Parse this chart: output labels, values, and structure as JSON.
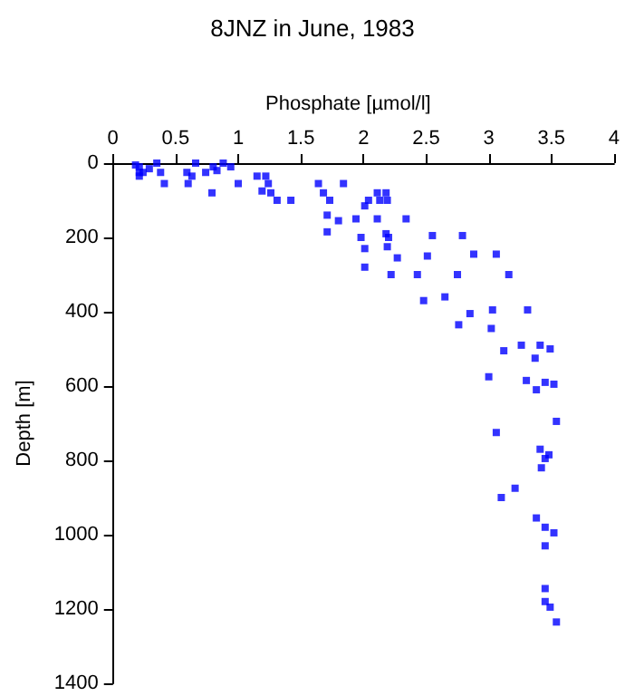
{
  "chart_data": {
    "type": "scatter",
    "title": "8JNZ in June, 1983",
    "xlabel": "Phosphate [µmol/l]",
    "ylabel": "Depth [m]",
    "x": [
      0.18,
      0.21,
      0.21,
      0.21,
      0.24,
      0.29,
      0.35,
      0.38,
      0.41,
      0.59,
      0.6,
      0.63,
      0.66,
      0.74,
      0.8,
      0.83,
      0.88,
      0.94,
      0.79,
      1.0,
      1.15,
      1.22,
      1.24,
      1.19,
      1.26,
      1.31,
      1.42,
      1.64,
      1.84,
      1.68,
      2.11,
      2.18,
      1.73,
      2.04,
      2.13,
      2.19,
      2.01,
      1.71,
      1.8,
      1.94,
      2.11,
      2.34,
      1.71,
      2.18,
      2.2,
      2.55,
      2.79,
      1.98,
      2.01,
      2.19,
      2.27,
      2.51,
      2.88,
      3.06,
      2.01,
      2.22,
      2.43,
      2.75,
      3.16,
      2.48,
      2.65,
      2.85,
      3.03,
      3.31,
      2.76,
      3.02,
      3.12,
      3.26,
      3.41,
      3.49,
      3.37,
      3.0,
      3.3,
      3.45,
      3.52,
      3.38,
      3.54,
      3.06,
      3.41,
      3.48,
      3.45,
      3.42,
      3.21,
      3.1,
      3.38,
      3.45,
      3.52,
      3.45,
      3.45,
      3.45,
      3.49,
      3.54
    ],
    "values": [
      5,
      10,
      25,
      35,
      25,
      15,
      0,
      25,
      55,
      25,
      55,
      35,
      0,
      25,
      10,
      20,
      0,
      10,
      80,
      55,
      35,
      35,
      55,
      75,
      80,
      100,
      100,
      55,
      55,
      80,
      80,
      80,
      100,
      100,
      100,
      100,
      115,
      140,
      155,
      150,
      150,
      150,
      185,
      190,
      200,
      195,
      195,
      200,
      230,
      225,
      255,
      250,
      245,
      245,
      280,
      300,
      300,
      300,
      300,
      370,
      360,
      405,
      395,
      395,
      435,
      445,
      505,
      490,
      490,
      500,
      525,
      575,
      585,
      590,
      595,
      610,
      695,
      725,
      770,
      785,
      795,
      820,
      875,
      900,
      955,
      980,
      995,
      1030,
      1145,
      1180,
      1195,
      1235
    ],
    "color": "#0000ff",
    "marker": "square",
    "xlim": [
      0,
      4
    ],
    "xticks": [
      0,
      0.5,
      1,
      1.5,
      2,
      2.5,
      3,
      3.5,
      4
    ],
    "ylim": [
      1400,
      0
    ],
    "yticks": [
      0,
      200,
      400,
      600,
      800,
      1000,
      1200,
      1400
    ],
    "grid": false,
    "legend": false
  }
}
